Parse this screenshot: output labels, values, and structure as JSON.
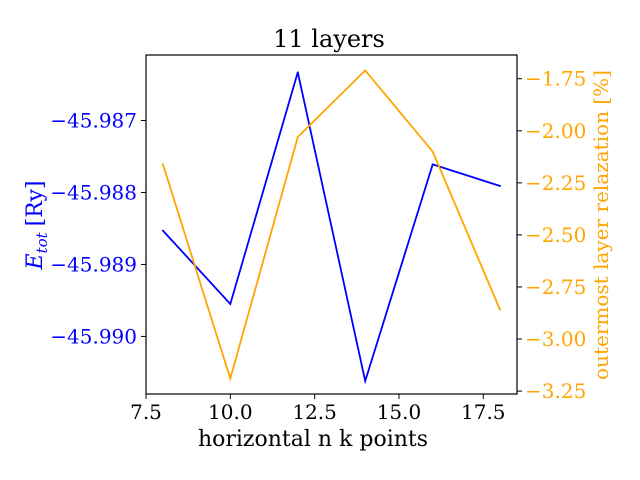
{
  "chart_data": {
    "type": "line",
    "title": "11 layers",
    "xlabel": "horizontal n k points",
    "xlim": [
      7.5,
      18.5
    ],
    "xticks": [
      7.5,
      10.0,
      12.5,
      15.0,
      17.5
    ],
    "xtick_labels": [
      "7.5",
      "10.0",
      "12.5",
      "15.0",
      "17.5"
    ],
    "grid": false,
    "series": [
      {
        "axis": "left",
        "color": "#0000ff",
        "x": [
          8,
          10,
          12,
          14,
          16,
          18
        ],
        "y": [
          -45.98853,
          -45.98955,
          -45.98633,
          -45.99062,
          -45.98761,
          -45.98791
        ]
      },
      {
        "axis": "right",
        "color": "#ffa500",
        "x": [
          8,
          10,
          12,
          14,
          16,
          18
        ],
        "y": [
          -2.16,
          -3.19,
          -2.03,
          -1.71,
          -2.1,
          -2.86
        ]
      }
    ],
    "y_left": {
      "label_main": "E",
      "label_sub": "tot",
      "label_unit": "[Ry]",
      "color": "#0000ff",
      "ylim": [
        -45.9908,
        -45.98609
      ],
      "ticks": [
        -45.987,
        -45.988,
        -45.989,
        -45.99
      ],
      "tick_labels": [
        "−45.987",
        "−45.988",
        "−45.989",
        "−45.990"
      ]
    },
    "y_right": {
      "label": "outermost layer relazation [%]",
      "color": "#ffa500",
      "ylim": [
        -3.264,
        -1.636
      ],
      "ticks": [
        -1.75,
        -2.0,
        -2.25,
        -2.5,
        -2.75,
        -3.0,
        -3.25
      ],
      "tick_labels": [
        "−1.75",
        "−2.00",
        "−2.25",
        "−2.50",
        "−2.75",
        "−3.00",
        "−3.25"
      ]
    }
  }
}
